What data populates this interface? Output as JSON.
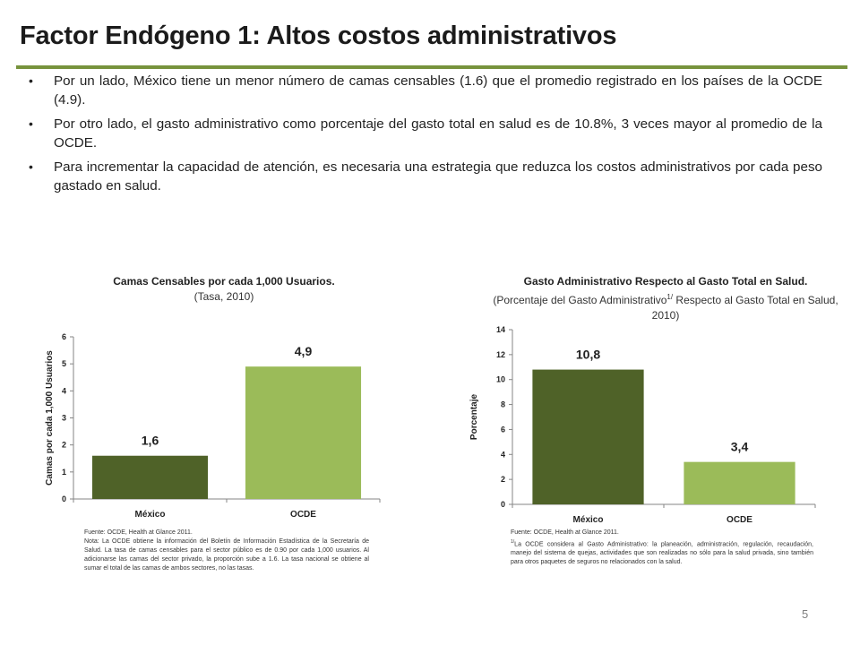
{
  "slide": {
    "title": "Factor Endógeno 1: Altos costos administrativos",
    "page_number": "5",
    "accent_color": "#77933c"
  },
  "bullets": [
    "Por un lado, México tiene un menor número de camas censables (1.6) que el promedio registrado en los países de la OCDE (4.9).",
    "Por otro lado, el gasto administrativo como porcentaje del gasto total en salud es de 10.8%, 3 veces mayor al promedio de la OCDE.",
    "Para incrementar la capacidad de atención, es necesaria una estrategia que reduzca los costos administrativos por cada peso gastado en salud."
  ],
  "chart_data": [
    {
      "type": "bar",
      "title": "Camas Censables por cada 1,000 Usuarios.",
      "subtitle": "(Tasa, 2010)",
      "xlabel": "",
      "ylabel": "Camas por cada 1,000 Usuarios",
      "categories": [
        "México",
        "OCDE"
      ],
      "values": [
        1.6,
        4.9
      ],
      "value_labels": [
        "1,6",
        "4,9"
      ],
      "ylim": [
        0,
        6
      ],
      "yticks": [
        0,
        1,
        2,
        3,
        4,
        5,
        6
      ],
      "colors": [
        "#4f6228",
        "#9bbb59"
      ],
      "grid": false,
      "legend": "none",
      "note_source": "Fuente: OCDE, Health at Glance 2011.",
      "note_text": "Nota: La OCDE obtiene la información del Boletín de Información Estadística de la Secretaría de Salud. La tasa de camas censables para el sector público es de 0.90 por cada 1,000 usuarios. Al adicionarse las camas del sector privado, la proporción sube a 1.6. La tasa nacional se obtiene al sumar el total de las camas de ambos sectores, no las tasas."
    },
    {
      "type": "bar",
      "title": "Gasto Administrativo Respecto al Gasto Total en Salud.",
      "subtitle_pre": "(Porcentaje del Gasto Administrativo",
      "subtitle_sup": "1/",
      "subtitle_post": " Respecto al Gasto Total en Salud, 2010)",
      "xlabel": "",
      "ylabel": "Porcentaje",
      "categories": [
        "México",
        "OCDE"
      ],
      "values": [
        10.8,
        3.4
      ],
      "value_labels": [
        "10,8",
        "3,4"
      ],
      "ylim": [
        0,
        14
      ],
      "yticks": [
        0,
        2,
        4,
        6,
        8,
        10,
        12,
        14
      ],
      "colors": [
        "#4f6228",
        "#9bbb59"
      ],
      "grid": false,
      "legend": "none",
      "note_source": "Fuente: OCDE, Health at Glance 2011.",
      "note_sup": "1/",
      "note_text": "La OCDE considera al Gasto Administrativo: la planeación, administración, regulación, recaudación, manejo del sistema de quejas, actividades que son realizadas no sólo para la salud privada, sino también para otros paquetes de seguros no relacionados con la salud."
    }
  ]
}
